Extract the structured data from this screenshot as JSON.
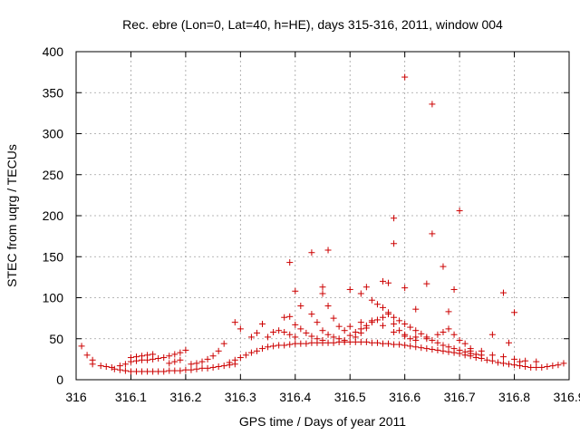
{
  "chart_data": {
    "type": "scatter",
    "title": "Rec. ebre (Lon=0, Lat=40, h=HE), days 315-316, 2011, window 004",
    "xlabel": "GPS time / Days of year 2011",
    "ylabel": "STEC from uqrg / TECUs",
    "xlim": [
      316,
      316.9
    ],
    "ylim": [
      0,
      400
    ],
    "xticks": [
      316,
      316.1,
      316.2,
      316.3,
      316.4,
      316.5,
      316.6,
      316.7,
      316.8,
      316.9
    ],
    "xtick_labels": [
      "316",
      "316.1",
      "316.2",
      "316.3",
      "316.4",
      "316.5",
      "316.6",
      "316.7",
      "316.8",
      "316.9"
    ],
    "yticks": [
      0,
      50,
      100,
      150,
      200,
      250,
      300,
      350,
      400
    ],
    "ytick_labels": [
      "0",
      "50",
      "100",
      "150",
      "200",
      "250",
      "300",
      "350",
      "400"
    ],
    "grid": true,
    "marker": "+",
    "marker_color": "#cc0000",
    "series": [
      {
        "points": [
          [
            316.01,
            41
          ],
          [
            316.02,
            30
          ],
          [
            316.03,
            24
          ],
          [
            316.03,
            19
          ],
          [
            316.045,
            17
          ],
          [
            316.055,
            16
          ],
          [
            316.065,
            15
          ],
          [
            316.07,
            13
          ],
          [
            316.08,
            12
          ],
          [
            316.09,
            11
          ],
          [
            316.1,
            10
          ],
          [
            316.11,
            10
          ],
          [
            316.12,
            10
          ],
          [
            316.13,
            10
          ],
          [
            316.14,
            10
          ],
          [
            316.15,
            10
          ],
          [
            316.16,
            10
          ],
          [
            316.17,
            11
          ],
          [
            316.18,
            11
          ],
          [
            316.19,
            11
          ],
          [
            316.2,
            12
          ],
          [
            316.21,
            12
          ],
          [
            316.22,
            13
          ],
          [
            316.23,
            14
          ],
          [
            316.24,
            14
          ],
          [
            316.25,
            15
          ],
          [
            316.26,
            16
          ],
          [
            316.27,
            17
          ],
          [
            316.28,
            18
          ],
          [
            316.29,
            19
          ],
          [
            316.08,
            17
          ],
          [
            316.09,
            19
          ],
          [
            316.1,
            22
          ],
          [
            316.11,
            23
          ],
          [
            316.12,
            24
          ],
          [
            316.13,
            24
          ],
          [
            316.14,
            25
          ],
          [
            316.15,
            26
          ],
          [
            316.16,
            27
          ],
          [
            316.17,
            29
          ],
          [
            316.18,
            31
          ],
          [
            316.19,
            33
          ],
          [
            316.2,
            36
          ],
          [
            316.1,
            27
          ],
          [
            316.11,
            28
          ],
          [
            316.12,
            29
          ],
          [
            316.13,
            30
          ],
          [
            316.14,
            31
          ],
          [
            316.17,
            20
          ],
          [
            316.18,
            22
          ],
          [
            316.19,
            24
          ],
          [
            316.21,
            19
          ],
          [
            316.22,
            20
          ],
          [
            316.23,
            22
          ],
          [
            316.24,
            25
          ],
          [
            316.25,
            29
          ],
          [
            316.26,
            35
          ],
          [
            316.27,
            44
          ],
          [
            316.28,
            21
          ],
          [
            316.29,
            24
          ],
          [
            316.3,
            27
          ],
          [
            316.31,
            30
          ],
          [
            316.32,
            33
          ],
          [
            316.33,
            35
          ],
          [
            316.34,
            38
          ],
          [
            316.35,
            40
          ],
          [
            316.36,
            41
          ],
          [
            316.37,
            42
          ],
          [
            316.38,
            42
          ],
          [
            316.39,
            43
          ],
          [
            316.4,
            44
          ],
          [
            316.41,
            44
          ],
          [
            316.42,
            44
          ],
          [
            316.43,
            45
          ],
          [
            316.44,
            45
          ],
          [
            316.45,
            45
          ],
          [
            316.46,
            45
          ],
          [
            316.47,
            45
          ],
          [
            316.48,
            46
          ],
          [
            316.49,
            46
          ],
          [
            316.5,
            46
          ],
          [
            316.51,
            46
          ],
          [
            316.52,
            46
          ],
          [
            316.53,
            46
          ],
          [
            316.54,
            45
          ],
          [
            316.55,
            45
          ],
          [
            316.56,
            44
          ],
          [
            316.57,
            44
          ],
          [
            316.58,
            43
          ],
          [
            316.59,
            43
          ],
          [
            316.6,
            42
          ],
          [
            316.61,
            41
          ],
          [
            316.62,
            40
          ],
          [
            316.63,
            39
          ],
          [
            316.64,
            38
          ],
          [
            316.65,
            37
          ],
          [
            316.66,
            36
          ],
          [
            316.67,
            35
          ],
          [
            316.68,
            34
          ],
          [
            316.69,
            33
          ],
          [
            316.7,
            32
          ],
          [
            316.71,
            30
          ],
          [
            316.72,
            29
          ],
          [
            316.73,
            27
          ],
          [
            316.74,
            26
          ],
          [
            316.75,
            24
          ],
          [
            316.76,
            23
          ],
          [
            316.77,
            21
          ],
          [
            316.78,
            20
          ],
          [
            316.79,
            19
          ],
          [
            316.8,
            18
          ],
          [
            316.81,
            17
          ],
          [
            316.82,
            16
          ],
          [
            316.83,
            15
          ],
          [
            316.84,
            15
          ],
          [
            316.85,
            15
          ],
          [
            316.86,
            16
          ],
          [
            316.87,
            17
          ],
          [
            316.88,
            18
          ],
          [
            316.89,
            20
          ],
          [
            316.29,
            70
          ],
          [
            316.3,
            62
          ],
          [
            316.32,
            52
          ],
          [
            316.33,
            57
          ],
          [
            316.34,
            68
          ],
          [
            316.35,
            52
          ],
          [
            316.36,
            58
          ],
          [
            316.37,
            60
          ],
          [
            316.38,
            76
          ],
          [
            316.39,
            77
          ],
          [
            316.38,
            58
          ],
          [
            316.39,
            55
          ],
          [
            316.4,
            52
          ],
          [
            316.4,
            67
          ],
          [
            316.41,
            62
          ],
          [
            316.42,
            57
          ],
          [
            316.43,
            53
          ],
          [
            316.44,
            50
          ],
          [
            316.45,
            48
          ],
          [
            316.41,
            90
          ],
          [
            316.43,
            80
          ],
          [
            316.44,
            70
          ],
          [
            316.45,
            60
          ],
          [
            316.46,
            55
          ],
          [
            316.47,
            52
          ],
          [
            316.48,
            50
          ],
          [
            316.49,
            48
          ],
          [
            316.5,
            54
          ],
          [
            316.51,
            58
          ],
          [
            316.52,
            62
          ],
          [
            316.53,
            66
          ],
          [
            316.54,
            70
          ],
          [
            316.55,
            73
          ],
          [
            316.56,
            76
          ],
          [
            316.57,
            80
          ],
          [
            316.58,
            76
          ],
          [
            316.59,
            72
          ],
          [
            316.6,
            68
          ],
          [
            316.61,
            64
          ],
          [
            316.62,
            60
          ],
          [
            316.63,
            56
          ],
          [
            316.64,
            52
          ],
          [
            316.65,
            48
          ],
          [
            316.66,
            45
          ],
          [
            316.67,
            42
          ],
          [
            316.68,
            40
          ],
          [
            316.69,
            38
          ],
          [
            316.7,
            36
          ],
          [
            316.71,
            34
          ],
          [
            316.72,
            32
          ],
          [
            316.73,
            31
          ],
          [
            316.74,
            30
          ],
          [
            316.45,
            105
          ],
          [
            316.46,
            90
          ],
          [
            316.47,
            75
          ],
          [
            316.48,
            65
          ],
          [
            316.49,
            60
          ],
          [
            316.51,
            52
          ],
          [
            316.52,
            57
          ],
          [
            316.53,
            63
          ],
          [
            316.55,
            92
          ],
          [
            316.56,
            88
          ],
          [
            316.57,
            82
          ],
          [
            316.58,
            68
          ],
          [
            316.59,
            60
          ],
          [
            316.6,
            53
          ],
          [
            316.61,
            50
          ],
          [
            316.62,
            48
          ],
          [
            316.5,
            65
          ],
          [
            316.52,
            70
          ],
          [
            316.54,
            72
          ],
          [
            316.56,
            66
          ],
          [
            316.58,
            58
          ],
          [
            316.6,
            55
          ],
          [
            316.62,
            52
          ],
          [
            316.64,
            50
          ],
          [
            316.66,
            55
          ],
          [
            316.67,
            58
          ],
          [
            316.68,
            62
          ],
          [
            316.69,
            55
          ],
          [
            316.7,
            48
          ],
          [
            316.71,
            44
          ],
          [
            316.72,
            38
          ],
          [
            316.74,
            35
          ],
          [
            316.76,
            30
          ],
          [
            316.78,
            28
          ],
          [
            316.8,
            25
          ],
          [
            316.82,
            23
          ],
          [
            316.84,
            22
          ],
          [
            316.45,
            113
          ],
          [
            316.5,
            110
          ],
          [
            316.52,
            105
          ],
          [
            316.53,
            113
          ],
          [
            316.54,
            97
          ],
          [
            316.56,
            120
          ],
          [
            316.57,
            118
          ],
          [
            316.6,
            112
          ],
          [
            316.62,
            86
          ],
          [
            316.64,
            117
          ],
          [
            316.67,
            138
          ],
          [
            316.68,
            83
          ],
          [
            316.69,
            110
          ],
          [
            316.72,
            35
          ],
          [
            316.76,
            55
          ],
          [
            316.78,
            106
          ],
          [
            316.79,
            45
          ],
          [
            316.8,
            82
          ],
          [
            316.81,
            22
          ],
          [
            316.39,
            143
          ],
          [
            316.4,
            108
          ],
          [
            316.43,
            155
          ],
          [
            316.46,
            158
          ],
          [
            316.58,
            197
          ],
          [
            316.58,
            166
          ],
          [
            316.65,
            178
          ],
          [
            316.7,
            206
          ],
          [
            316.6,
            369
          ],
          [
            316.65,
            336
          ]
        ]
      }
    ]
  }
}
